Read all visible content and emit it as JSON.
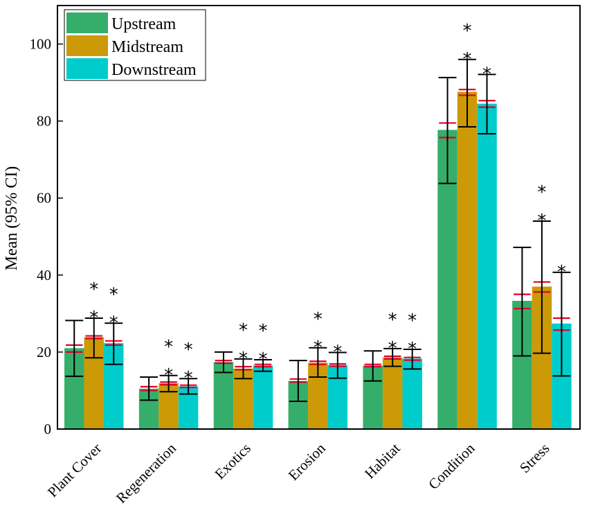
{
  "chart_data": {
    "type": "bar",
    "ylabel": "Mean (95% CI)",
    "ylim": [
      0,
      110
    ],
    "yticks": [
      0,
      20,
      40,
      60,
      80,
      100
    ],
    "categories": [
      "Plant Cover",
      "Regeneration",
      "Exotics",
      "Erosion",
      "Habitat",
      "Condition",
      "Stress"
    ],
    "legend_position": "top-left",
    "series": [
      {
        "name": "Upstream",
        "color": "#36ae6b",
        "values": [
          21,
          10.5,
          17.4,
          12.5,
          16.5,
          77.7,
          33.3
        ],
        "ci_low": [
          13.7,
          7.5,
          14.7,
          7.2,
          12.5,
          63.8,
          19.0
        ],
        "ci_high": [
          28.2,
          13.5,
          20.0,
          17.8,
          20.3,
          91.3,
          47.2
        ],
        "red_marks": [
          [
            20.0,
            21.8
          ],
          [
            10.0,
            11.0
          ],
          [
            17.1,
            17.8
          ],
          [
            12.2,
            13.0
          ],
          [
            16.2,
            16.8
          ],
          [
            75.7,
            79.5
          ],
          [
            31.3,
            35.0
          ]
        ],
        "significance": [
          [],
          [],
          [],
          [],
          [],
          [],
          []
        ]
      },
      {
        "name": "Midstream",
        "color": "#cc9a06",
        "values": [
          23.9,
          11.9,
          15.7,
          17.2,
          18.6,
          87.6,
          37.0
        ],
        "ci_low": [
          18.5,
          9.7,
          13.1,
          13.5,
          16.3,
          78.5,
          19.7
        ],
        "ci_high": [
          28.8,
          13.9,
          18.2,
          21.1,
          20.9,
          96.0,
          54.0
        ],
        "red_marks": [
          [
            23.5,
            24.2
          ],
          [
            11.5,
            12.2
          ],
          [
            15.4,
            16.2
          ],
          [
            16.8,
            17.6
          ],
          [
            18.2,
            18.9
          ],
          [
            86.7,
            88.2
          ],
          [
            35.6,
            38.2
          ]
        ],
        "significance": [
          [
            "*",
            "*"
          ],
          [
            "*",
            "*"
          ],
          [
            "*",
            "*"
          ],
          [
            "*",
            "*"
          ],
          [
            "*",
            "*"
          ],
          [
            "*",
            "*"
          ],
          [
            "*",
            "*"
          ]
        ]
      },
      {
        "name": "Downstream",
        "color": "#00cccc",
        "values": [
          22.3,
          11.1,
          16.5,
          16.6,
          18.3,
          84.5,
          27.4
        ],
        "ci_low": [
          16.8,
          9.1,
          15.0,
          13.2,
          15.6,
          76.7,
          13.8
        ],
        "ci_high": [
          27.5,
          13.1,
          18.0,
          19.9,
          20.7,
          92.1,
          40.7
        ],
        "red_marks": [
          [
            21.8,
            22.9
          ],
          [
            10.8,
            11.4
          ],
          [
            16.2,
            16.8
          ],
          [
            16.3,
            16.9
          ],
          [
            17.9,
            18.6
          ],
          [
            83.6,
            85.3
          ],
          [
            25.7,
            28.8
          ]
        ],
        "significance": [
          [
            "*",
            "*"
          ],
          [
            "*",
            "*"
          ],
          [
            "*",
            "*"
          ],
          [
            "*"
          ],
          [
            "*",
            "*"
          ],
          [
            "*"
          ],
          [
            "*"
          ]
        ]
      }
    ]
  }
}
